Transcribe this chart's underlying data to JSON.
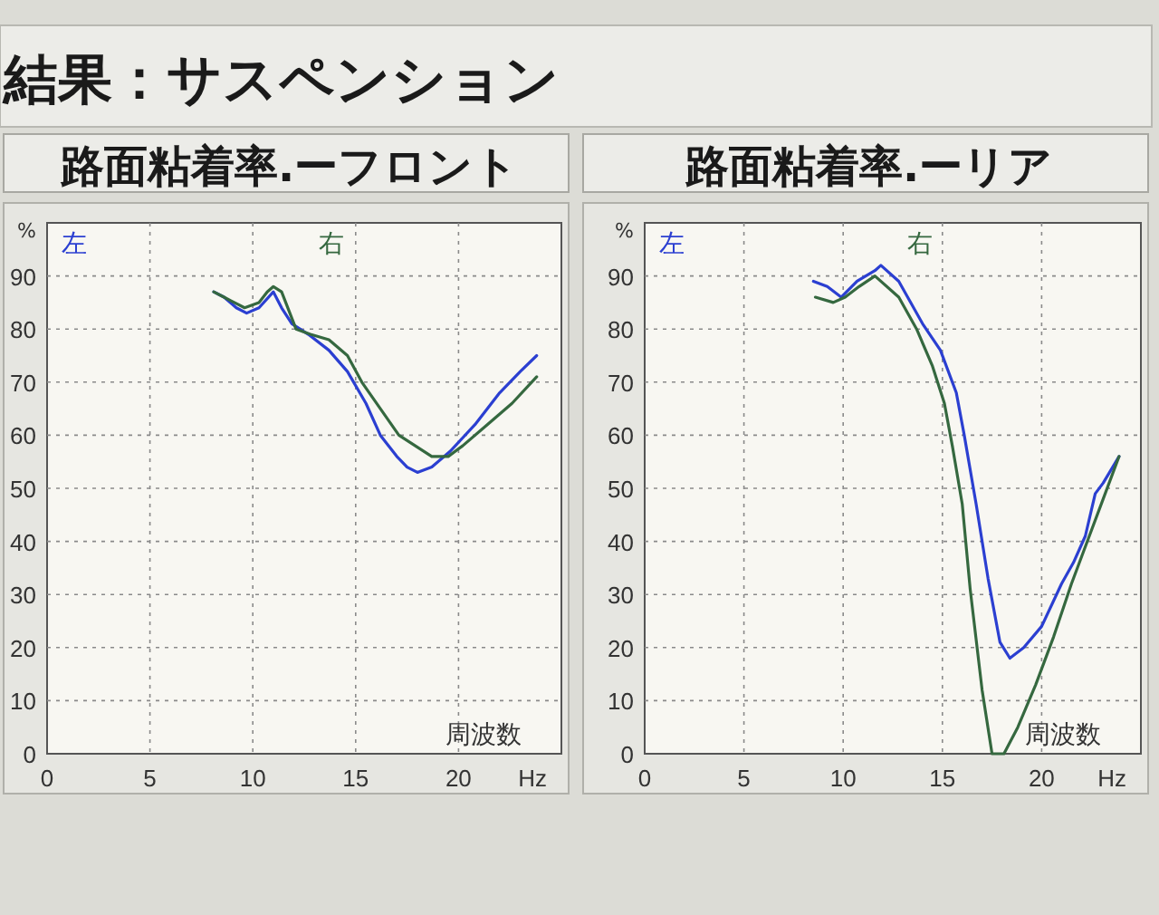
{
  "chart_data": [
    {
      "type": "line",
      "title": "結果：サスペンション",
      "subtitle": "路面粘着率.ーフロント",
      "xlabel": "周波数",
      "ylabel": "%",
      "annotations": [
        "Hz"
      ],
      "xlim": [
        0,
        25
      ],
      "xticks": [
        0,
        5,
        10,
        15,
        20
      ],
      "ylim": [
        0,
        100
      ],
      "yticks": [
        0,
        10,
        20,
        30,
        40,
        50,
        60,
        70,
        80,
        90
      ],
      "grid": true,
      "legend": "top",
      "series": [
        {
          "name": "左",
          "color": "#2b3fd1",
          "x": [
            8.1,
            8.6,
            9.2,
            9.7,
            10.3,
            11.0,
            11.4,
            11.9,
            12.7,
            13.7,
            14.6,
            15.5,
            16.2,
            17.0,
            17.5,
            18.0,
            18.7,
            19.6,
            20.8,
            22.0,
            23.0,
            23.8
          ],
          "values": [
            87,
            86,
            84,
            83,
            84,
            87,
            84,
            81,
            79,
            76,
            72,
            66,
            60,
            56,
            54,
            53,
            54,
            57,
            62,
            68,
            72,
            75
          ]
        },
        {
          "name": "右",
          "color": "#35683f",
          "x": [
            8.1,
            8.6,
            9.1,
            9.6,
            10.3,
            10.7,
            11.0,
            11.4,
            12.1,
            12.8,
            13.7,
            14.6,
            15.3,
            16.2,
            17.1,
            17.9,
            18.7,
            19.5,
            20.2,
            21.4,
            22.6,
            23.8
          ],
          "values": [
            87,
            86,
            85,
            84,
            85,
            87,
            88,
            87,
            80,
            79,
            78,
            75,
            70,
            65,
            60,
            58,
            56,
            56,
            58,
            62,
            66,
            71
          ]
        }
      ]
    },
    {
      "type": "line",
      "subtitle": "路面粘着率.ーリア",
      "xlabel": "周波数",
      "ylabel": "%",
      "annotations": [
        "Hz"
      ],
      "xlim": [
        0,
        25
      ],
      "xticks": [
        0,
        5,
        10,
        15,
        20
      ],
      "ylim": [
        0,
        100
      ],
      "yticks": [
        0,
        10,
        20,
        30,
        40,
        50,
        60,
        70,
        80,
        90
      ],
      "grid": true,
      "legend": "top",
      "series": [
        {
          "name": "左",
          "color": "#2b3fd1",
          "x": [
            8.5,
            9.2,
            9.9,
            10.7,
            11.6,
            11.9,
            12.8,
            14.0,
            14.9,
            15.7,
            16.1,
            16.7,
            17.3,
            17.9,
            18.4,
            19.1,
            20.0,
            21.0,
            21.6,
            22.2,
            22.7,
            23.1,
            23.9
          ],
          "values": [
            89,
            88,
            86,
            89,
            91,
            92,
            89,
            81,
            76,
            68,
            60,
            47,
            33,
            21,
            18,
            20,
            24,
            32,
            36,
            41,
            49,
            51,
            56
          ]
        },
        {
          "name": "右",
          "color": "#35683f",
          "x": [
            8.6,
            9.5,
            10.1,
            10.8,
            11.6,
            12.8,
            13.7,
            14.5,
            15.1,
            15.5,
            16.0,
            16.4,
            17.0,
            17.5,
            18.1,
            18.8,
            19.7,
            20.6,
            21.5,
            22.2,
            23.0,
            23.9
          ],
          "values": [
            86,
            85,
            86,
            88,
            90,
            86,
            80,
            73,
            66,
            58,
            47,
            31,
            12,
            0,
            0,
            5,
            13,
            22,
            32,
            39,
            47,
            56
          ]
        }
      ]
    }
  ]
}
